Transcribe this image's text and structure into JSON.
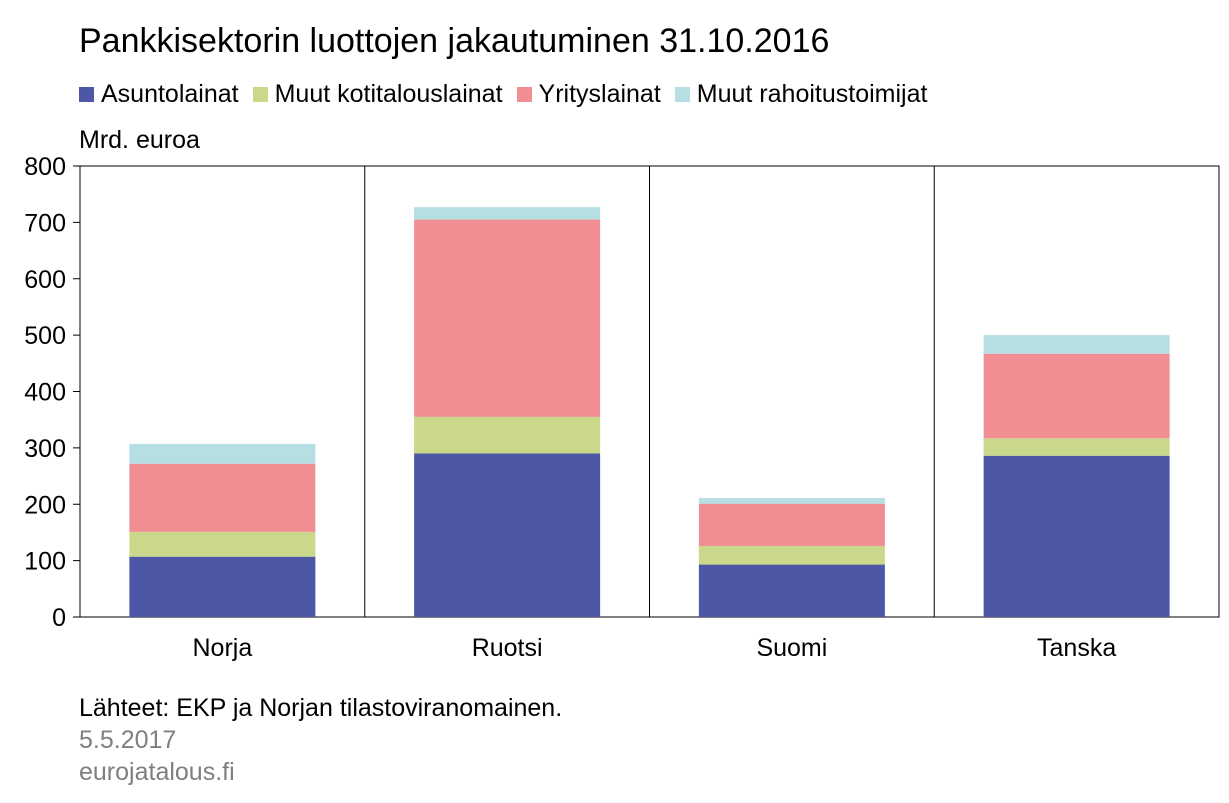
{
  "chart_data": {
    "type": "bar",
    "stacked": true,
    "title": "Pankkisektorin luottojen jakautuminen 31.10.2016",
    "ylabel": "Mrd. euroa",
    "ylim": [
      0,
      800
    ],
    "yticks": [
      0,
      100,
      200,
      300,
      400,
      500,
      600,
      700,
      800
    ],
    "categories": [
      "Norja",
      "Ruotsi",
      "Suomi",
      "Tanska"
    ],
    "legend_position": "top",
    "series": [
      {
        "name": "Asuntolainat",
        "color": "#4e56a6",
        "values": [
          107,
          290,
          93,
          286
        ]
      },
      {
        "name": "Muut kotitalouslainat",
        "color": "#c9d88b",
        "values": [
          44,
          65,
          33,
          31
        ]
      },
      {
        "name": "Yrityslainat",
        "color": "#f08e94",
        "values": [
          121,
          350,
          75,
          150
        ]
      },
      {
        "name": "Muut rahoitustoimijat",
        "color": "#b5dfe2",
        "values": [
          35,
          22,
          10,
          33
        ]
      }
    ]
  },
  "footer": {
    "source": "Lähteet: EKP ja Norjan tilastoviranomainen.",
    "date": "5.5.2017",
    "site": "eurojatalous.fi"
  }
}
